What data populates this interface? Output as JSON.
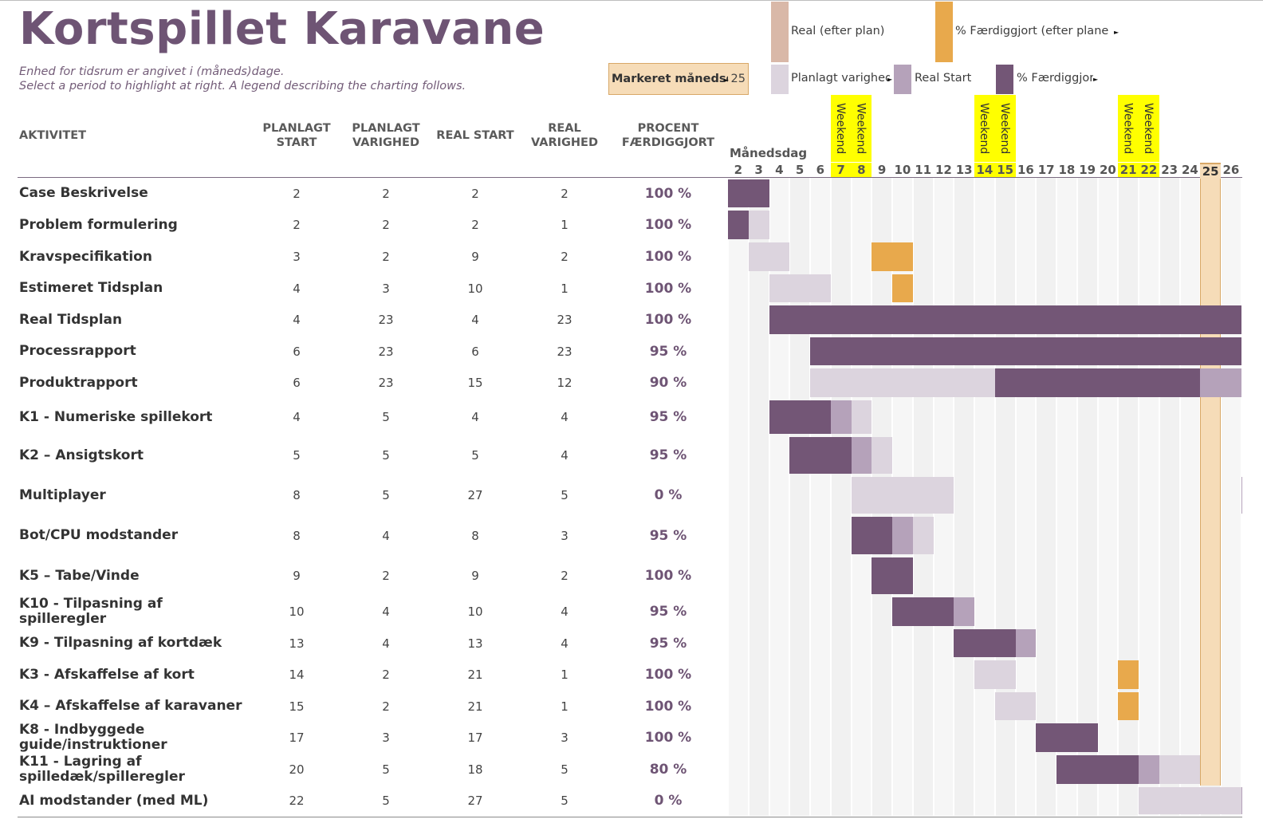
{
  "title": "Kortspillet Karavane",
  "subtitle1": "Enhed for tidsrum er angivet i (måneds)dage.",
  "subtitle2": "Select a period to highlight at right.  A legend describing the charting follows.",
  "period": {
    "label": "Markeret månedsdag",
    "value": "25"
  },
  "legend": {
    "real_after_plan": "Real (efter plan)",
    "pct_done_after_plan": "% Færdiggjort (efter plane",
    "plan_duration": "Planlagt varighed",
    "real_start": "Real Start",
    "pct_done": "% Færdiggjort"
  },
  "columns": {
    "activity": "AKTIVITET",
    "plan_start": "PLANLAGT\nSTART",
    "plan_duration": "PLANLAGT\nVARIGHED",
    "real_start": "REAL START",
    "real_duration": "REAL\nVARIGHED",
    "pct": "PROCENT\nFÆRDIGGJORT"
  },
  "timeline": {
    "label": "Månedsdag",
    "weekend_label": "Weekend",
    "days": [
      2,
      3,
      4,
      5,
      6,
      7,
      8,
      9,
      10,
      11,
      12,
      13,
      14,
      15,
      16,
      17,
      18,
      19,
      20,
      21,
      22,
      23,
      24,
      25,
      26
    ],
    "weekend_days": [
      7,
      8,
      14,
      15,
      21,
      22
    ],
    "highlight_day": 25,
    "last_visible_day": 26
  },
  "colors": {
    "title": "#6e5474",
    "plan": "#dcd4de",
    "real_start": "#b5a2ba",
    "pct_done": "#735676",
    "real_after_plan": "#d9b8a8",
    "pct_after_plan": "#e8a94c",
    "weekend": "#ffff00",
    "highlight": "#f6dcb8"
  },
  "rows": [
    {
      "activity": "Case Beskrivelse",
      "plan_start": 2,
      "plan_dur": 2,
      "real_start": 2,
      "real_dur": 2,
      "pct": "100 %",
      "pct_value": 1.0
    },
    {
      "activity": "Problem formulering",
      "plan_start": 2,
      "plan_dur": 2,
      "real_start": 2,
      "real_dur": 1,
      "pct": "100 %",
      "pct_value": 1.0
    },
    {
      "activity": "Kravspecifikation",
      "plan_start": 3,
      "plan_dur": 2,
      "real_start": 9,
      "real_dur": 2,
      "pct": "100 %",
      "pct_value": 1.0
    },
    {
      "activity": "Estimeret Tidsplan",
      "plan_start": 4,
      "plan_dur": 3,
      "real_start": 10,
      "real_dur": 1,
      "pct": "100 %",
      "pct_value": 1.0
    },
    {
      "activity": "Real Tidsplan",
      "plan_start": 4,
      "plan_dur": 23,
      "real_start": 4,
      "real_dur": 23,
      "pct": "100 %",
      "pct_value": 1.0
    },
    {
      "activity": "Processrapport",
      "plan_start": 6,
      "plan_dur": 23,
      "real_start": 6,
      "real_dur": 23,
      "pct": "95 %",
      "pct_value": 0.95
    },
    {
      "activity": "Produktrapport",
      "plan_start": 6,
      "plan_dur": 23,
      "real_start": 15,
      "real_dur": 12,
      "pct": "90 %",
      "pct_value": 0.9
    },
    {
      "activity": "K1 - Numeriske spillekort",
      "plan_start": 4,
      "plan_dur": 5,
      "real_start": 4,
      "real_dur": 4,
      "pct": "95 %",
      "pct_value": 0.95
    },
    {
      "activity": "K2 – Ansigtskort",
      "plan_start": 5,
      "plan_dur": 5,
      "real_start": 5,
      "real_dur": 4,
      "pct": "95 %",
      "pct_value": 0.95
    },
    {
      "activity": "Multiplayer",
      "plan_start": 8,
      "plan_dur": 5,
      "real_start": 27,
      "real_dur": 5,
      "pct": "0 %",
      "pct_value": 0
    },
    {
      "activity": "Bot/CPU modstander",
      "plan_start": 8,
      "plan_dur": 4,
      "real_start": 8,
      "real_dur": 3,
      "pct": "95 %",
      "pct_value": 0.95
    },
    {
      "activity": "K5 – Tabe/Vinde",
      "plan_start": 9,
      "plan_dur": 2,
      "real_start": 9,
      "real_dur": 2,
      "pct": "100 %",
      "pct_value": 1.0
    },
    {
      "activity": "K10 - Tilpasning af\nspilleregler",
      "plan_start": 10,
      "plan_dur": 4,
      "real_start": 10,
      "real_dur": 4,
      "pct": "95 %",
      "pct_value": 0.95
    },
    {
      "activity": "K9 - Tilpasning af kortdæk",
      "plan_start": 13,
      "plan_dur": 4,
      "real_start": 13,
      "real_dur": 4,
      "pct": "95 %",
      "pct_value": 0.95
    },
    {
      "activity": "K3 - Afskaffelse af kort",
      "plan_start": 14,
      "plan_dur": 2,
      "real_start": 21,
      "real_dur": 1,
      "pct": "100 %",
      "pct_value": 1.0
    },
    {
      "activity": "K4 – Afskaffelse af karavaner",
      "plan_start": 15,
      "plan_dur": 2,
      "real_start": 21,
      "real_dur": 1,
      "pct": "100 %",
      "pct_value": 1.0
    },
    {
      "activity": "K8 - Indbyggede\nguide/instruktioner",
      "plan_start": 17,
      "plan_dur": 3,
      "real_start": 17,
      "real_dur": 3,
      "pct": "100 %",
      "pct_value": 1.0
    },
    {
      "activity": "K11 - Lagring af\nspilledæk/spilleregler",
      "plan_start": 20,
      "plan_dur": 5,
      "real_start": 18,
      "real_dur": 5,
      "pct": "80 %",
      "pct_value": 0.8
    },
    {
      "activity": "AI modstander (med ML)",
      "plan_start": 22,
      "plan_dur": 5,
      "real_start": 27,
      "real_dur": 5,
      "pct": "0 %",
      "pct_value": 0
    }
  ]
}
